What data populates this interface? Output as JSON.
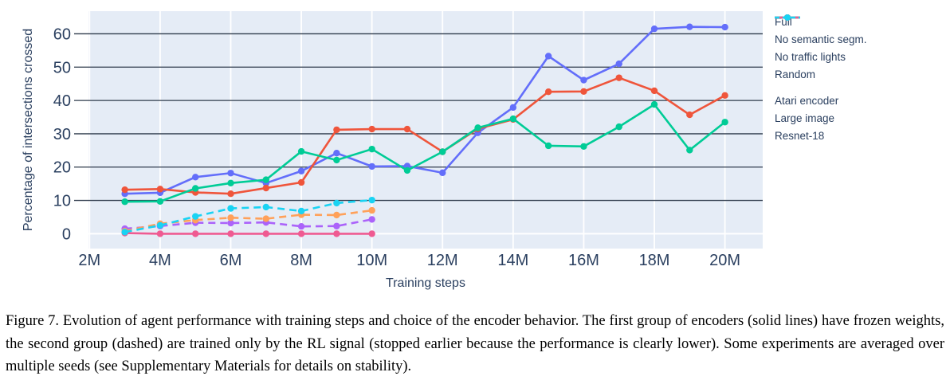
{
  "figure": {
    "caption": "Figure 7. Evolution of agent performance with training steps and choice of the encoder behavior. The first group of encoders (solid lines) have frozen weights, the second group (dashed) are trained only by the RL signal (stopped earlier because the performance is clearly lower). Some experiments are averaged over multiple seeds (see Supplementary Materials for details on stability)."
  },
  "chart_data": {
    "type": "line",
    "title": "",
    "xlabel": "Training steps",
    "ylabel": "Percentage of intersections crossed",
    "x_unit": "millions of steps",
    "xlim_millions": [
      1.97,
      21.07
    ],
    "ylim": [
      -4.45,
      66.8
    ],
    "x_ticks": [
      {
        "v": 2,
        "label": "2M"
      },
      {
        "v": 4,
        "label": "4M"
      },
      {
        "v": 6,
        "label": "6M"
      },
      {
        "v": 8,
        "label": "8M"
      },
      {
        "v": 10,
        "label": "10M"
      },
      {
        "v": 12,
        "label": "12M"
      },
      {
        "v": 14,
        "label": "14M"
      },
      {
        "v": 16,
        "label": "16M"
      },
      {
        "v": 18,
        "label": "18M"
      },
      {
        "v": 20,
        "label": "20M"
      }
    ],
    "y_ticks": [
      {
        "v": 0,
        "label": "0"
      },
      {
        "v": 10,
        "label": "10"
      },
      {
        "v": 20,
        "label": "20"
      },
      {
        "v": 30,
        "label": "30"
      },
      {
        "v": 40,
        "label": "40"
      },
      {
        "v": 50,
        "label": "50"
      },
      {
        "v": 60,
        "label": "60"
      }
    ],
    "grid": {
      "horizontal": "dark",
      "vertical": "white",
      "zeroline": "white"
    },
    "legend_position": "right-outside",
    "colors": {
      "plot_background": "#e5ecf6",
      "grid_dark": "#2f3b4c",
      "zero_line": "#ffffff",
      "vertical_grid": "#ffffff",
      "axis_text": "#2a3f5f",
      "page_background": "#ffffff"
    },
    "series": [
      {
        "name": "Full",
        "color": "#636efa",
        "dash": "solid",
        "group": 1,
        "x": [
          3,
          4,
          5,
          6,
          7,
          8,
          9,
          10,
          11,
          12,
          13,
          14,
          15,
          16,
          17,
          18,
          19,
          20
        ],
        "y": [
          12,
          12.3,
          17,
          18.2,
          15.2,
          18.8,
          24.2,
          20.2,
          20.3,
          18.3,
          30.3,
          37.9,
          53.3,
          46.1,
          51,
          61.5,
          62.1,
          62
        ]
      },
      {
        "name": "No semantic segm.",
        "color": "#ef553b",
        "dash": "solid",
        "group": 1,
        "x": [
          3,
          4,
          5,
          6,
          7,
          8,
          9,
          10,
          11,
          12,
          13,
          14,
          15,
          16,
          17,
          18,
          19,
          20
        ],
        "y": [
          13.2,
          13.4,
          12.4,
          12,
          13.7,
          15.4,
          31.2,
          31.4,
          31.4,
          24.6,
          31.5,
          34.3,
          42.6,
          42.7,
          46.8,
          42.9,
          35.7,
          41.5
        ]
      },
      {
        "name": "No traffic lights",
        "color": "#00cc96",
        "dash": "solid",
        "group": 1,
        "x": [
          3,
          4,
          5,
          6,
          7,
          8,
          9,
          10,
          11,
          12,
          13,
          14,
          15,
          16,
          17,
          18,
          19,
          20
        ],
        "y": [
          9.6,
          9.7,
          13.6,
          15.2,
          16.2,
          24.7,
          22.1,
          25.4,
          19,
          24.6,
          31.8,
          34.5,
          26.4,
          26.2,
          32.1,
          38.8,
          25.1,
          33.5
        ]
      },
      {
        "name": "Random",
        "color": "#ef5b92",
        "dash": "solid",
        "group": 1,
        "x": [
          3,
          4,
          5,
          6,
          7,
          8,
          9,
          10
        ],
        "y": [
          0.2,
          0,
          0,
          0,
          0,
          0,
          0,
          0
        ]
      },
      {
        "name": "Atari encoder",
        "color": "#ab63fa",
        "dash": "dashed",
        "group": 2,
        "x": [
          3,
          4,
          5,
          6,
          7,
          8,
          9,
          10
        ],
        "y": [
          1.5,
          2.3,
          3.3,
          3.2,
          3.4,
          2.2,
          2.3,
          4.3
        ]
      },
      {
        "name": "Large image",
        "color": "#ffa15a",
        "dash": "dashed",
        "group": 2,
        "x": [
          3,
          4,
          5,
          6,
          7,
          8,
          9,
          10
        ],
        "y": [
          0.8,
          3,
          4.1,
          4.8,
          4.5,
          5.7,
          5.6,
          7
        ]
      },
      {
        "name": "Resnet-18",
        "color": "#19d3f3",
        "dash": "dashed",
        "group": 2,
        "x": [
          3,
          4,
          5,
          6,
          7,
          8,
          9,
          10
        ],
        "y": [
          0.5,
          2.5,
          5.2,
          7.6,
          8,
          6.8,
          9.2,
          10.1
        ]
      }
    ]
  }
}
